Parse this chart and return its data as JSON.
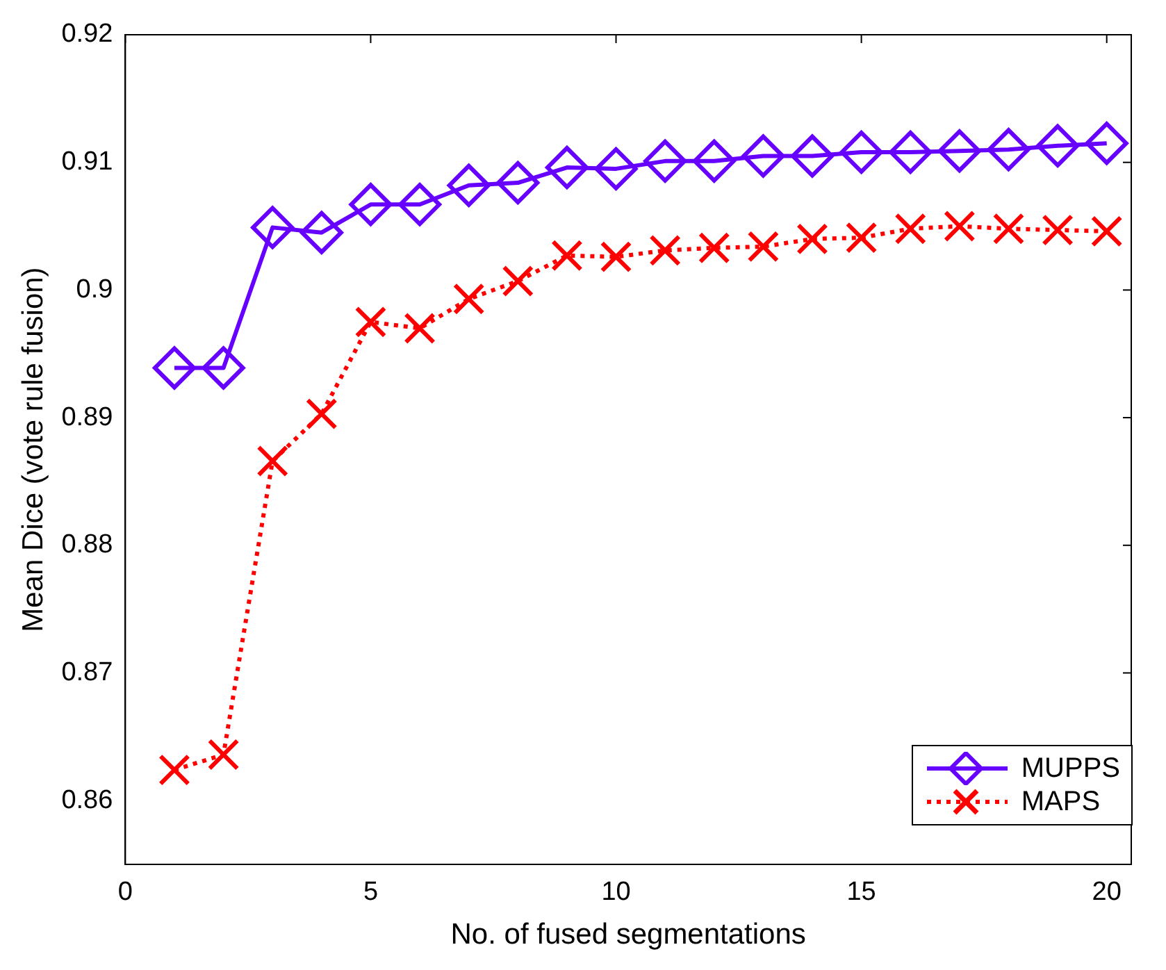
{
  "chart_data": {
    "type": "line",
    "xlabel": "No. of fused segmentations",
    "ylabel": "Mean Dice (vote rule fusion)",
    "x": [
      1,
      2,
      3,
      4,
      5,
      6,
      7,
      8,
      9,
      10,
      11,
      12,
      13,
      14,
      15,
      16,
      17,
      18,
      19,
      20
    ],
    "xlim": [
      0,
      20.5
    ],
    "xticks": [
      0,
      5,
      10,
      15,
      20
    ],
    "ylim": [
      0.855,
      0.92
    ],
    "yticks": [
      0.86,
      0.87,
      0.88,
      0.89,
      0.9,
      0.91,
      0.92
    ],
    "grid": false,
    "legend": "bottom right",
    "series": [
      {
        "name": "MUPPS",
        "color": "#6600ff",
        "marker": "diamond",
        "line_style": "solid",
        "values": [
          0.8939,
          0.8939,
          0.9049,
          0.9045,
          0.9067,
          0.9067,
          0.9082,
          0.9084,
          0.9096,
          0.9095,
          0.9101,
          0.9101,
          0.9105,
          0.9105,
          0.9108,
          0.9108,
          0.9109,
          0.911,
          0.9113,
          0.9115
        ]
      },
      {
        "name": "MAPS",
        "color": "#ff0000",
        "marker": "cross",
        "line_style": "dotted",
        "values": [
          0.8624,
          0.8636,
          0.8866,
          0.8903,
          0.8975,
          0.897,
          0.8993,
          0.9007,
          0.9027,
          0.9026,
          0.9031,
          0.9033,
          0.9034,
          0.904,
          0.9041,
          0.9048,
          0.905,
          0.9048,
          0.9047,
          0.9046
        ]
      }
    ]
  }
}
